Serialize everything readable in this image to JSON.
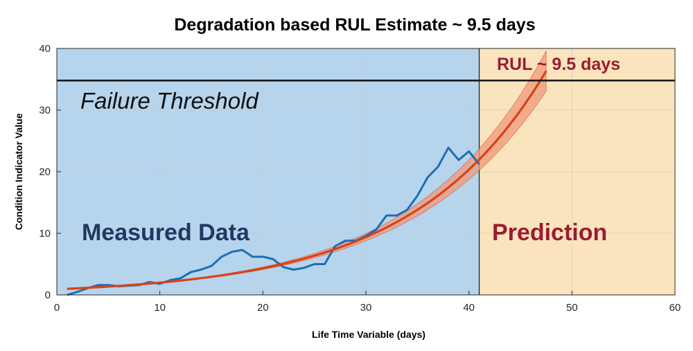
{
  "chart_data": {
    "type": "line",
    "title": "Degradation based RUL Estimate ~ 9.5 days",
    "xlabel": "Life Time Variable (days)",
    "ylabel": "Condition Indicator Value",
    "xlim": [
      0,
      60
    ],
    "ylim": [
      0,
      40
    ],
    "xticks": [
      "0",
      "10",
      "20",
      "30",
      "40",
      "50",
      "60"
    ],
    "yticks": [
      "0",
      "10",
      "20",
      "30",
      "40"
    ],
    "grid": true,
    "regions": [
      {
        "name": "Measured Data",
        "x_range": [
          0,
          41
        ],
        "color": "#b6d4ec",
        "label_color": "#1f3864"
      },
      {
        "name": "Prediction",
        "x_range": [
          41,
          60
        ],
        "color": "#fae4bd",
        "label_color": "#9b1c31"
      }
    ],
    "threshold": {
      "label": "Failure Threshold",
      "y": 34.8
    },
    "rul_annotation": {
      "label": "RUL ~ 9.5 days",
      "color": "#9b1c31"
    },
    "series": [
      {
        "name": "",
        "kind": "measured",
        "color": "#1a6fb5",
        "x": [
          1,
          2,
          3,
          4,
          5,
          6,
          7,
          8,
          9,
          10,
          11,
          12,
          13,
          14,
          15,
          16,
          17,
          18,
          19,
          20,
          21,
          22,
          23,
          24,
          25,
          26,
          27,
          28,
          29,
          30,
          31,
          32,
          33,
          34,
          35,
          36,
          37,
          38,
          39,
          40,
          41
        ],
        "y": [
          0,
          0.5,
          1.1,
          1.6,
          1.6,
          1.4,
          1.5,
          1.6,
          2.1,
          1.8,
          2.4,
          2.7,
          3.7,
          4.1,
          4.7,
          6.2,
          7.0,
          7.3,
          6.2,
          6.2,
          5.8,
          4.5,
          4.1,
          4.4,
          5.0,
          5.0,
          7.9,
          8.8,
          8.8,
          9.6,
          10.6,
          12.9,
          12.9,
          13.8,
          16.1,
          19.1,
          20.8,
          23.9,
          21.9,
          23.3,
          21.2
        ]
      },
      {
        "name": "",
        "kind": "fit",
        "color": "#d9411a",
        "band_color": "#ef9a7c",
        "x_range": [
          1,
          47.5
        ],
        "a": 0.92,
        "b": 0.0774,
        "band_halfwidth_frac": [
          0.02,
          0.09
        ]
      }
    ]
  }
}
